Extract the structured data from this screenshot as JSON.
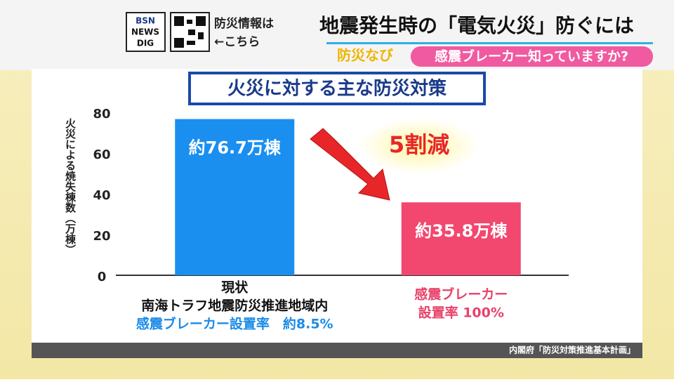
{
  "header": {
    "logo": [
      "BSN",
      "NEWS",
      "DIG"
    ],
    "qr_caption": [
      "防災情報は",
      "←こちら"
    ],
    "headline": "地震発生時の「電気火災」防ぐには",
    "tag": "防災なび",
    "subhead": "感震ブレーカー知っていますか?"
  },
  "chart_data": {
    "type": "bar",
    "title": "火災に対する主な防災対策",
    "y_label": "火災による焼失棟数（万棟）",
    "categories": [
      [
        "現状",
        "南海トラフ地震防災推進地域内",
        "感震ブレーカー設置率　約8.5%"
      ],
      [
        "感震ブレーカー",
        "設置率 100%"
      ]
    ],
    "category_label_colors": [
      [
        "#111111",
        "#111111",
        "#1a8be8"
      ],
      [
        "#e8416a",
        "#e8416a"
      ]
    ],
    "values": [
      76.7,
      35.8
    ],
    "value_labels": [
      "約76.7万棟",
      "約35.8万棟"
    ],
    "colors": [
      "#1a8ff0",
      "#f2476f"
    ],
    "ylim": [
      0,
      80
    ],
    "yticks": [
      0,
      20,
      40,
      60,
      80
    ],
    "annotation": "5割減"
  },
  "source": "内閣府「防災対策推進基本計画」"
}
